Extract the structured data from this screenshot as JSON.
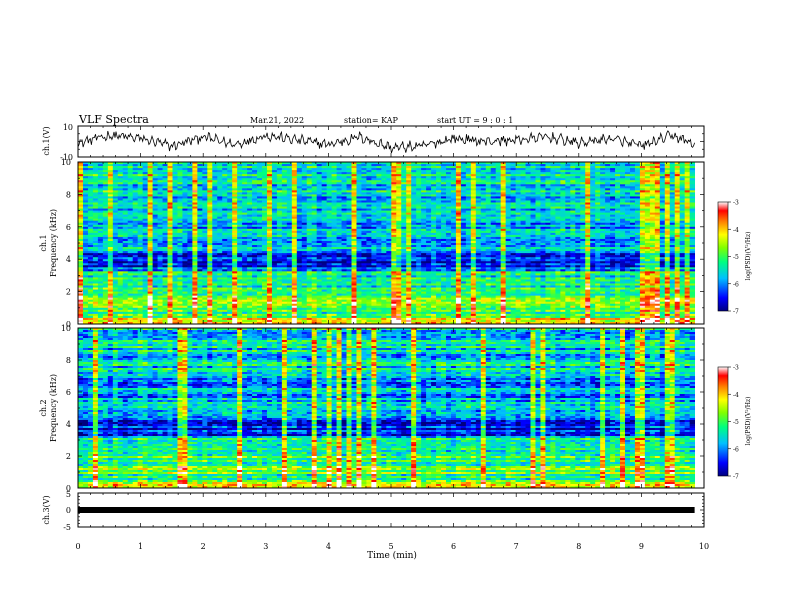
{
  "header": {
    "title": "VLF Spectra",
    "date": "Mar.21, 2022",
    "station": "station= KAP",
    "start": "start  UT  =   9 : 0  : 1"
  },
  "chart_data": [
    {
      "type": "line",
      "panel": "ch1-waveform",
      "ylabel": "ch.1(V)",
      "ylim": [
        -10,
        10
      ],
      "yticks": [
        "10",
        "-10"
      ],
      "xlim": [
        0,
        10
      ],
      "x_end": 9.85,
      "description": "noisy voltage waveform oscillating roughly between -7 and +8 V",
      "x": [
        0,
        0.5,
        1.0,
        1.5,
        2.0,
        2.5,
        3.0,
        3.5,
        4.0,
        4.5,
        5.0,
        5.5,
        6.0,
        6.5,
        7.0,
        7.5,
        8.0,
        8.5,
        9.0,
        9.5,
        9.85
      ],
      "values": [
        -1,
        4,
        2,
        -3,
        3,
        -2,
        4,
        1,
        -2,
        3,
        -4,
        -3,
        2,
        0,
        1,
        3,
        -1,
        2,
        -3,
        4,
        -2
      ]
    },
    {
      "type": "heatmap",
      "panel": "ch1-spectrogram",
      "ylabel": "ch.1\nFrequency (kHz)",
      "ylim": [
        0,
        10
      ],
      "yticks": [
        "0",
        "2",
        "4",
        "6",
        "8",
        "10"
      ],
      "xlim": [
        0,
        10
      ],
      "x_end": 9.85,
      "colorbar": {
        "label": "log(PSD)(V²/Hz)",
        "range": [
          -7,
          -3
        ],
        "ticks": [
          "-3",
          "-4",
          "-5",
          "-6",
          "-7"
        ]
      }
    },
    {
      "type": "heatmap",
      "panel": "ch2-spectrogram",
      "ylabel": "ch.2\nFrequency (kHz)",
      "ylim": [
        0,
        10
      ],
      "yticks": [
        "0",
        "2",
        "4",
        "6",
        "8",
        "10"
      ],
      "xlim": [
        0,
        10
      ],
      "x_end": 9.85,
      "colorbar": {
        "label": "log(PSD)(V²/Hz)",
        "range": [
          -7,
          -3
        ],
        "ticks": [
          "-3",
          "-4",
          "-5",
          "-6",
          "-7"
        ]
      }
    },
    {
      "type": "line",
      "panel": "ch3-waveform",
      "ylabel": "ch.3(V)",
      "ylim": [
        -5,
        5
      ],
      "yticks": [
        "5",
        "0",
        "-5"
      ],
      "xlim": [
        0,
        10
      ],
      "x_end": 9.85,
      "xlabel": "Time  (min)",
      "xticks": [
        "0",
        "1",
        "2",
        "3",
        "4",
        "5",
        "6",
        "7",
        "8",
        "9",
        "10"
      ],
      "description": "thick nearly constant trace around 0 V",
      "x": [
        0,
        9.85
      ],
      "values": [
        0,
        0
      ]
    }
  ],
  "colors": {
    "colormap": [
      "#00007f",
      "#0000ff",
      "#00c0ff",
      "#00ff80",
      "#80ff00",
      "#ffff00",
      "#ff8000",
      "#ff0000",
      "#ffffff"
    ]
  }
}
